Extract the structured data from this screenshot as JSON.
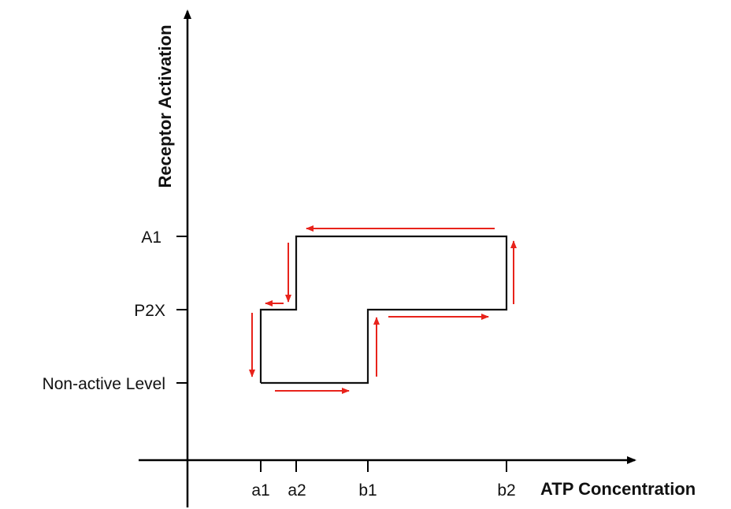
{
  "diagram": {
    "x_axis": {
      "title": "ATP Concentration",
      "ticks": [
        "a1",
        "a2",
        "b1",
        "b2"
      ]
    },
    "y_axis": {
      "title": "Receptor Activation",
      "levels": [
        "Non-active Level",
        "P2X",
        "A1"
      ]
    },
    "colors": {
      "axis": "#000000",
      "path": "#111111",
      "arrow": "#e8231b"
    }
  }
}
